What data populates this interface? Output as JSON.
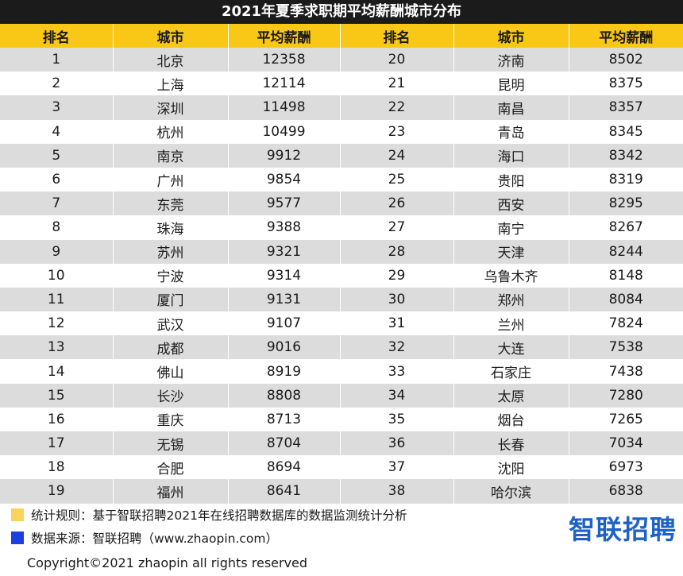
{
  "title": "2021年夏季求职期平均薪酬城市分布",
  "headers": [
    "排名",
    "城市",
    "平均薪酬",
    "排名",
    "城市",
    "平均薪酬"
  ],
  "rows": [
    {
      "rank1": "1",
      "city1": "北京",
      "salary1": "12358",
      "rank2": "20",
      "city2": "济南",
      "salary2": "8502"
    },
    {
      "rank1": "2",
      "city1": "上海",
      "salary1": "12114",
      "rank2": "21",
      "city2": "昆明",
      "salary2": "8375"
    },
    {
      "rank1": "3",
      "city1": "深圳",
      "salary1": "11498",
      "rank2": "22",
      "city2": "南昌",
      "salary2": "8357"
    },
    {
      "rank1": "4",
      "city1": "杭州",
      "salary1": "10499",
      "rank2": "23",
      "city2": "青岛",
      "salary2": "8345"
    },
    {
      "rank1": "5",
      "city1": "南京",
      "salary1": "9912",
      "rank2": "24",
      "city2": "海口",
      "salary2": "8342"
    },
    {
      "rank1": "6",
      "city1": "广州",
      "salary1": "9854",
      "rank2": "25",
      "city2": "贵阳",
      "salary2": "8319"
    },
    {
      "rank1": "7",
      "city1": "东莞",
      "salary1": "9577",
      "rank2": "26",
      "city2": "西安",
      "salary2": "8295"
    },
    {
      "rank1": "8",
      "city1": "珠海",
      "salary1": "9388",
      "rank2": "27",
      "city2": "南宁",
      "salary2": "8267"
    },
    {
      "rank1": "9",
      "city1": "苏州",
      "salary1": "9321",
      "rank2": "28",
      "city2": "天津",
      "salary2": "8244"
    },
    {
      "rank1": "10",
      "city1": "宁波",
      "salary1": "9314",
      "rank2": "29",
      "city2": "乌鲁木齐",
      "salary2": "8148"
    },
    {
      "rank1": "11",
      "city1": "厦门",
      "salary1": "9131",
      "rank2": "30",
      "city2": "郑州",
      "salary2": "8084"
    },
    {
      "rank1": "12",
      "city1": "武汉",
      "salary1": "9107",
      "rank2": "31",
      "city2": "兰州",
      "salary2": "7824"
    },
    {
      "rank1": "13",
      "city1": "成都",
      "salary1": "9016",
      "rank2": "32",
      "city2": "大连",
      "salary2": "7538"
    },
    {
      "rank1": "14",
      "city1": "佛山",
      "salary1": "8919",
      "rank2": "33",
      "city2": "石家庄",
      "salary2": "7438"
    },
    {
      "rank1": "15",
      "city1": "长沙",
      "salary1": "8808",
      "rank2": "34",
      "city2": "太原",
      "salary2": "7280"
    },
    {
      "rank1": "16",
      "city1": "重庆",
      "salary1": "8713",
      "rank2": "35",
      "city2": "烟台",
      "salary2": "7265"
    },
    {
      "rank1": "17",
      "city1": "无锡",
      "salary1": "8704",
      "rank2": "36",
      "city2": "长春",
      "salary2": "7034"
    },
    {
      "rank1": "18",
      "city1": "合肥",
      "salary1": "8694",
      "rank2": "37",
      "city2": "沈阳",
      "salary2": "6973"
    },
    {
      "rank1": "19",
      "city1": "福州",
      "salary1": "8641",
      "rank2": "38",
      "city2": "哈尔滨",
      "salary2": "6838"
    }
  ],
  "notes": {
    "rule": "统计规则：基于智联招聘2021年在线招聘数据库的数据监测统计分析",
    "rule_color": "#f9d35c",
    "source": "数据来源：智联招聘（www.zhaopin.com）",
    "source_color": "#1c3fe0"
  },
  "brand": "智联招聘",
  "copyright": "Copyright©2021 zhaopin all rights reserved",
  "colors": {
    "header_bg": "#f9c715",
    "title_bg": "#1b1b1b",
    "stripe": "#dcdcdc",
    "brand": "#1e63c4"
  }
}
